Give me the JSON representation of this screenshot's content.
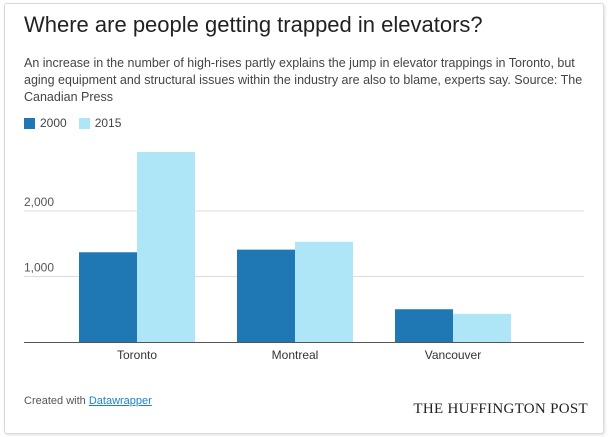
{
  "title": "Where are people getting trapped in elevators?",
  "subtitle": "An increase in the number of high-rises partly explains the jump in elevator trappings in Toronto, but aging equipment and structural issues within the industry are also to blame, experts say. Source: The Canadian Press",
  "footer": {
    "created_with": "Created with",
    "tool": "Datawrapper",
    "brand": "THE HUFFINGTON POST"
  },
  "colors": {
    "s2000": "#1f77b4",
    "s2015": "#aee6f7",
    "grid": "#dcdcdc",
    "axis": "#555555"
  },
  "chart_data": {
    "type": "bar",
    "categories": [
      "Toronto",
      "Montreal",
      "Vancouver"
    ],
    "series": [
      {
        "name": "2000",
        "values": [
          1370,
          1410,
          500
        ]
      },
      {
        "name": "2015",
        "values": [
          2900,
          1530,
          430
        ]
      }
    ],
    "ylim": [
      0,
      3000
    ],
    "yticks": [
      1000,
      2000
    ],
    "ytick_labels": [
      "1,000",
      "2,000"
    ],
    "grid": true,
    "legend_position": "top-left",
    "xlabel": "",
    "ylabel": ""
  }
}
